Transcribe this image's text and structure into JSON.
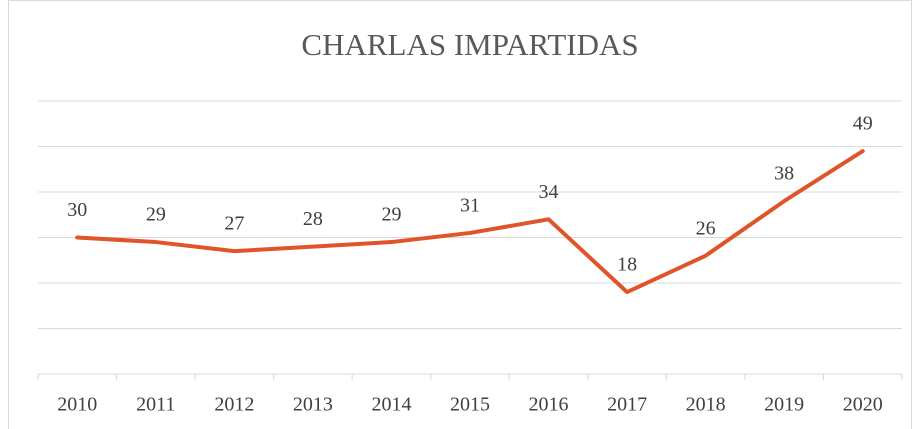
{
  "chart_data": {
    "type": "line",
    "title": "CHARLAS IMPARTIDAS",
    "categories": [
      "2010",
      "2011",
      "2012",
      "2013",
      "2014",
      "2015",
      "2016",
      "2017",
      "2018",
      "2019",
      "2020"
    ],
    "series": [
      {
        "name": "Charlas",
        "color": "#e0542a",
        "values": [
          30,
          29,
          27,
          28,
          29,
          31,
          34,
          18,
          26,
          38,
          49
        ]
      }
    ],
    "ylim": [
      0,
      60
    ],
    "yticks": [
      0,
      10,
      20,
      30,
      40,
      50,
      60
    ],
    "grid": true,
    "y_tick_labels": false,
    "legend": false,
    "data_labels": true
  }
}
